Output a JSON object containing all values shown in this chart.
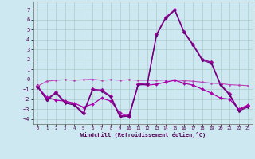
{
  "xlabel": "Windchill (Refroidissement éolien,°C)",
  "xlim": [
    -0.5,
    23.5
  ],
  "ylim": [
    -4.5,
    7.8
  ],
  "yticks": [
    -4,
    -3,
    -2,
    -1,
    0,
    1,
    2,
    3,
    4,
    5,
    6,
    7
  ],
  "xticks": [
    0,
    1,
    2,
    3,
    4,
    5,
    6,
    7,
    8,
    9,
    10,
    11,
    12,
    13,
    14,
    15,
    16,
    17,
    18,
    19,
    20,
    21,
    22,
    23
  ],
  "bg_color": "#cde8f0",
  "grid_color": "#aacccc",
  "series": [
    {
      "x": [
        0,
        1,
        2,
        3,
        4,
        5,
        6,
        7,
        8,
        9,
        10,
        11,
        12,
        13,
        14,
        15,
        16,
        17,
        18,
        19,
        20,
        21,
        22,
        23
      ],
      "y": [
        -0.7,
        -2.0,
        -1.3,
        -2.3,
        -2.5,
        -3.4,
        -1.0,
        -1.1,
        -1.7,
        -3.7,
        -3.6,
        -0.5,
        -0.4,
        4.5,
        6.2,
        7.0,
        4.8,
        3.5,
        2.0,
        1.7,
        -0.5,
        -1.5,
        -3.1,
        -2.7
      ],
      "color": "#990099",
      "lw": 1.0,
      "ms": 2.5
    },
    {
      "x": [
        0,
        1,
        2,
        3,
        4,
        5,
        6,
        7,
        8,
        9,
        10,
        11,
        12,
        13,
        14,
        15,
        16,
        17,
        18,
        19,
        20,
        21,
        22,
        23
      ],
      "y": [
        -0.7,
        -0.2,
        -0.1,
        -0.05,
        -0.1,
        -0.05,
        0.0,
        -0.1,
        -0.05,
        -0.1,
        -0.05,
        -0.1,
        -0.1,
        -0.1,
        -0.1,
        -0.05,
        -0.15,
        -0.2,
        -0.3,
        -0.4,
        -0.45,
        -0.55,
        -0.6,
        -0.65
      ],
      "color": "#bb44bb",
      "lw": 0.8,
      "ms": 1.5
    },
    {
      "x": [
        0,
        1,
        2,
        3,
        4,
        5,
        6,
        7,
        8,
        9,
        10,
        11,
        12,
        13,
        14,
        15,
        16,
        17,
        18,
        19,
        20,
        21,
        22,
        23
      ],
      "y": [
        -0.8,
        -1.8,
        -2.1,
        -2.2,
        -2.4,
        -2.8,
        -2.5,
        -1.9,
        -2.2,
        -3.4,
        -3.8,
        -0.5,
        -0.6,
        -0.5,
        -0.3,
        -0.1,
        -0.4,
        -0.6,
        -1.0,
        -1.4,
        -1.9,
        -2.0,
        -3.0,
        -2.6
      ],
      "color": "#aa00aa",
      "lw": 0.9,
      "ms": 2.0
    },
    {
      "x": [
        0,
        1,
        2,
        3,
        4,
        5,
        6,
        7,
        8,
        9,
        10,
        11,
        12,
        13,
        14,
        15,
        16,
        17,
        18,
        19,
        20,
        21,
        22,
        23
      ],
      "y": [
        -0.8,
        -2.1,
        -1.4,
        -2.4,
        -2.6,
        -3.5,
        -1.1,
        -1.2,
        -1.8,
        -3.8,
        -3.7,
        -0.6,
        -0.5,
        4.4,
        6.1,
        6.9,
        4.7,
        3.4,
        1.9,
        1.6,
        -0.6,
        -1.6,
        -3.2,
        -2.8
      ],
      "color": "#660077",
      "lw": 0.8,
      "ms": 1.5
    }
  ]
}
